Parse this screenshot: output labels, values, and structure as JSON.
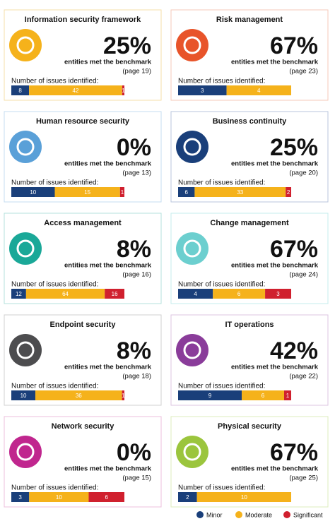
{
  "cards": [
    {
      "title": "Information security framework",
      "percent": "25%",
      "benchmark": "entities met the benchmark",
      "page": "(page 19)",
      "issues_label": "Number of issues identified:",
      "values": [
        8,
        42,
        1
      ],
      "icon_color": "#f5b21b",
      "border_color": "#f6dfa8"
    },
    {
      "title": "Risk management",
      "percent": "67%",
      "benchmark": "entities met the benchmark",
      "page": "(page 23)",
      "issues_label": "Number of issues identified:",
      "values": [
        3,
        4,
        null
      ],
      "icon_color": "#e8542a",
      "border_color": "#f6c9b8"
    },
    {
      "title": "Human resource security",
      "percent": "0%",
      "benchmark": "entities met the benchmark",
      "page": "(page 13)",
      "issues_label": "Number of issues identified:",
      "values": [
        10,
        15,
        1
      ],
      "icon_color": "#5aa0d8",
      "border_color": "#c4dcf0"
    },
    {
      "title": "Business continuity",
      "percent": "25%",
      "benchmark": "entities met the benchmark",
      "page": "(page 20)",
      "issues_label": "Number of issues identified:",
      "values": [
        6,
        33,
        2
      ],
      "icon_color": "#1a3f7a",
      "border_color": "#b9c6dc"
    },
    {
      "title": "Access management",
      "percent": "8%",
      "benchmark": "entities met the benchmark",
      "page": "(page 16)",
      "issues_label": "Number of issues identified:",
      "values": [
        12,
        64,
        16
      ],
      "icon_color": "#1aa898",
      "border_color": "#b5e2dc"
    },
    {
      "title": "Change management",
      "percent": "67%",
      "benchmark": "entities met the benchmark",
      "page": "(page 24)",
      "issues_label": "Number of issues identified:",
      "values": [
        4,
        6,
        3
      ],
      "icon_color": "#6ccfcf",
      "border_color": "#c6ecec"
    },
    {
      "title": "Endpoint security",
      "percent": "8%",
      "benchmark": "entities met the benchmark",
      "page": "(page 18)",
      "issues_label": "Number of issues identified:",
      "values": [
        10,
        36,
        1
      ],
      "icon_color": "#4d4d4f",
      "border_color": "#d0d0d0"
    },
    {
      "title": "IT operations",
      "percent": "42%",
      "benchmark": "entities met the benchmark",
      "page": "(page 22)",
      "issues_label": "Number of issues identified:",
      "values": [
        9,
        6,
        1
      ],
      "icon_color": "#8a3c9a",
      "border_color": "#dcc4e2"
    },
    {
      "title": "Network security",
      "percent": "0%",
      "benchmark": "entities met the benchmark",
      "page": "(page 15)",
      "issues_label": "Number of issues identified:",
      "values": [
        3,
        10,
        6
      ],
      "icon_color": "#c0268e",
      "border_color": "#ecbfdc"
    },
    {
      "title": "Physical security",
      "percent": "67%",
      "benchmark": "entities met the benchmark",
      "page": "(page 25)",
      "issues_label": "Number of issues identified:",
      "values": [
        2,
        10,
        null
      ],
      "icon_color": "#9bc53d",
      "border_color": "#dcecbc"
    }
  ],
  "legend": [
    {
      "name": "Minor",
      "color": "#1a3f7a"
    },
    {
      "name": "Moderate",
      "color": "#f5b21b"
    },
    {
      "name": "Significant",
      "color": "#d0202e"
    }
  ]
}
